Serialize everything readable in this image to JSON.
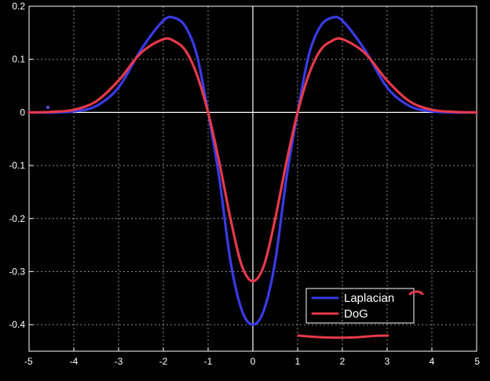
{
  "chart_data": {
    "type": "line",
    "title": "",
    "xlabel": "",
    "ylabel": "",
    "xlim": [
      -5,
      5
    ],
    "ylim": [
      -0.45,
      0.2
    ],
    "xticks": [
      -5,
      -4,
      -3,
      -2,
      -1,
      0,
      1,
      2,
      3,
      4,
      5
    ],
    "xtick_labels": [
      "-5",
      "-4",
      "-3",
      "-2",
      "-1",
      "0",
      "1",
      "2",
      "3",
      "4",
      "5"
    ],
    "yticks": [
      0.2,
      0.1,
      0,
      -0.1,
      -0.2,
      -0.3,
      -0.4
    ],
    "ytick_labels": [
      "0.2",
      "0.1",
      "0",
      "-0.1",
      "-0.2",
      "-0.3",
      "-0.4"
    ],
    "grid": true,
    "legend_position": "bottom-right",
    "background": "#000000",
    "foreground": "#ffffff",
    "series": [
      {
        "name": "Laplacian",
        "color": "#3a3ae6",
        "x": [
          -5,
          -4.5,
          -4,
          -3.5,
          -3,
          -2.5,
          -2,
          -1.75,
          -1.5,
          -1.25,
          -1,
          -0.75,
          -0.5,
          -0.25,
          0,
          0.25,
          0.5,
          0.75,
          1,
          1.25,
          1.5,
          1.75,
          2,
          2.5,
          3,
          3.5,
          4,
          4.5,
          5
        ],
        "y": [
          0.0,
          0.0,
          0.002,
          0.012,
          0.047,
          0.118,
          0.173,
          0.178,
          0.161,
          0.108,
          0.0,
          -0.124,
          -0.28,
          -0.372,
          -0.4,
          -0.372,
          -0.28,
          -0.124,
          0.0,
          0.108,
          0.161,
          0.178,
          0.173,
          0.118,
          0.047,
          0.012,
          0.002,
          0.0,
          0.0
        ]
      },
      {
        "name": "DoG",
        "color": "#e6394a",
        "x": [
          -5,
          -4.5,
          -4,
          -3.5,
          -3,
          -2.5,
          -2,
          -1.75,
          -1.5,
          -1.25,
          -1,
          -0.75,
          -0.5,
          -0.25,
          0,
          0.25,
          0.5,
          0.75,
          1,
          1.25,
          1.5,
          1.75,
          2,
          2.5,
          3,
          3.5,
          4,
          4.5,
          5
        ],
        "y": [
          0.0,
          0.001,
          0.005,
          0.021,
          0.06,
          0.112,
          0.138,
          0.134,
          0.116,
          0.071,
          0.0,
          -0.094,
          -0.2,
          -0.288,
          -0.318,
          -0.288,
          -0.2,
          -0.094,
          0.0,
          0.071,
          0.116,
          0.134,
          0.138,
          0.112,
          0.06,
          0.021,
          0.005,
          0.001,
          0.0
        ]
      }
    ]
  }
}
